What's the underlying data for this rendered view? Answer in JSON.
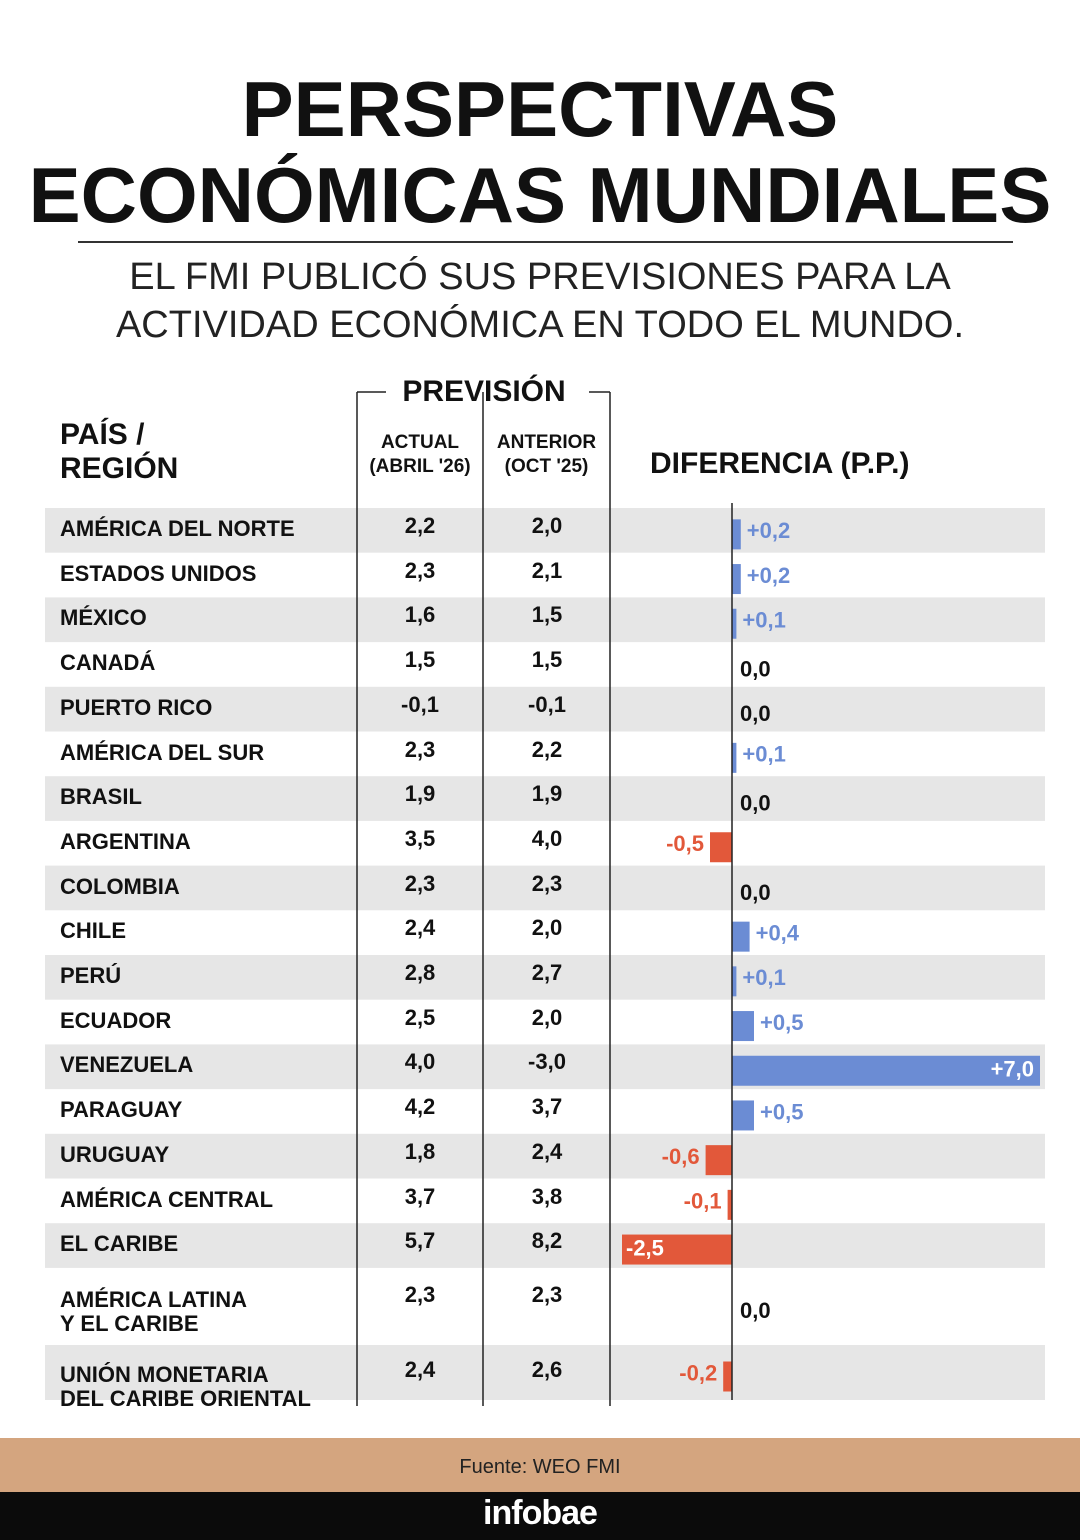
{
  "header": {
    "title": [
      "PERSPECTIVAS",
      "ECONÓMICAS MUNDIALES"
    ],
    "subtitle": [
      "EL FMI PUBLICÓ SUS PREVISIONES PARA LA",
      "ACTIVIDAD ECONÓMICA EN TODO EL MUNDO."
    ]
  },
  "table": {
    "group_header": "PREVISIÓN",
    "columns": [
      "PAÍS /\nREGIÓN",
      "ACTUAL\n(ABRIL '26)",
      "ANTERIOR\n(OCT '25)"
    ],
    "rows": [
      [
        "AMÉRICA DEL NORTE",
        "2,2",
        "2,0"
      ],
      [
        "ESTADOS UNIDOS",
        "2,3",
        "2,1"
      ],
      [
        "MÉXICO",
        "1,6",
        "1,5"
      ],
      [
        "CANADÁ",
        "1,5",
        "1,5"
      ],
      [
        "PUERTO RICO",
        "-0,1",
        "-0,1"
      ],
      [
        "AMÉRICA DEL SUR",
        "2,3",
        "2,2"
      ],
      [
        "BRASIL",
        "1,9",
        "1,9"
      ],
      [
        "ARGENTINA",
        "3,5",
        "4,0"
      ],
      [
        "COLOMBIA",
        "2,3",
        "2,3"
      ],
      [
        "CHILE",
        "2,4",
        "2,0"
      ],
      [
        "PERÚ",
        "2,8",
        "2,7"
      ],
      [
        "ECUADOR",
        "2,5",
        "2,0"
      ],
      [
        "VENEZUELA",
        "4,0",
        "-3,0"
      ],
      [
        "PARAGUAY",
        "4,2",
        "3,7"
      ],
      [
        "URUGUAY",
        "1,8",
        "2,4"
      ],
      [
        "AMÉRICA CENTRAL",
        "3,7",
        "3,8"
      ],
      [
        "EL CARIBE",
        "5,7",
        "8,2"
      ],
      [
        "AMÉRICA LATINA\nY EL CARIBE",
        "2,3",
        "2,3"
      ],
      [
        "UNIÓN MONETARIA\nDEL CARIBE ORIENTAL",
        "2,4",
        "2,6"
      ]
    ]
  },
  "chart_data": {
    "type": "bar",
    "title": "DIFERENCIA (P.P.)",
    "values": [
      0.2,
      0.2,
      0.1,
      0,
      0,
      0.1,
      0,
      -0.5,
      0,
      0.4,
      0.1,
      0.5,
      7.0,
      0.5,
      -0.6,
      -0.1,
      -2.5,
      0,
      -0.2
    ],
    "value_labels": [
      "+0,2",
      "+0,2",
      "+0,1",
      "0,0",
      "0,0",
      "+0,1",
      "0,0",
      "-0,5",
      "0,0",
      "+0,4",
      "+0,1",
      "+0,5",
      "+7,0",
      "+0,5",
      "-0,6",
      "-0,1",
      "-2,5",
      "0,0",
      "-0,2"
    ],
    "xlim": [
      -2.5,
      7.0
    ],
    "positive_color": "#6b8cd4",
    "negative_color": "#e2583a"
  },
  "footer": {
    "source": "Fuente: WEO FMI",
    "brand": "infobae"
  }
}
